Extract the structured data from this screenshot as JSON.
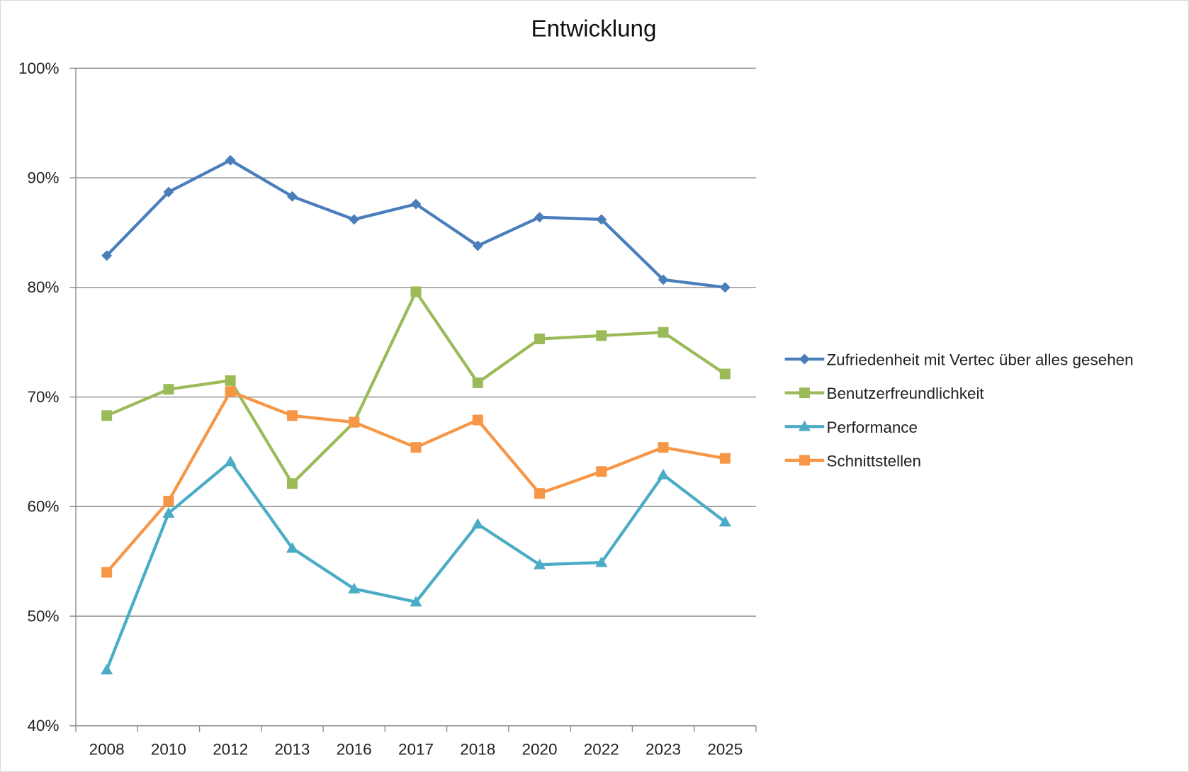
{
  "chart_data": {
    "type": "line",
    "title": "Entwicklung",
    "xlabel": "",
    "ylabel": "",
    "categories": [
      "2008",
      "2010",
      "2012",
      "2013",
      "2016",
      "2017",
      "2018",
      "2020",
      "2022",
      "2023",
      "2025"
    ],
    "ylim": [
      40,
      100
    ],
    "y_ticks": [
      "40%",
      "50%",
      "60%",
      "70%",
      "80%",
      "90%",
      "100%"
    ],
    "y_tick_values": [
      40,
      50,
      60,
      70,
      80,
      90,
      100
    ],
    "grid": true,
    "legend_position": "right",
    "series": [
      {
        "name": "Zufriedenheit mit Vertec über alles gesehen",
        "color": "#4a7ebb",
        "marker": "diamond",
        "values": [
          82.9,
          88.7,
          91.6,
          88.3,
          86.2,
          87.6,
          83.8,
          86.4,
          86.2,
          80.7,
          80.0
        ]
      },
      {
        "name": "Benutzerfreundlichkeit",
        "color": "#9bbb59",
        "marker": "square",
        "values": [
          68.3,
          70.7,
          71.5,
          62.1,
          67.7,
          79.6,
          71.3,
          75.3,
          75.6,
          75.9,
          72.1
        ]
      },
      {
        "name": "Performance",
        "color": "#4bacc6",
        "marker": "triangle",
        "values": [
          45.1,
          59.4,
          64.1,
          56.2,
          52.5,
          51.3,
          58.4,
          54.7,
          54.9,
          62.9,
          58.6
        ]
      },
      {
        "name": "Schnittstellen",
        "color": "#f79646",
        "marker": "square",
        "values": [
          54.0,
          60.5,
          70.5,
          68.3,
          67.7,
          65.4,
          67.9,
          61.2,
          63.2,
          65.4,
          64.4
        ]
      }
    ]
  }
}
